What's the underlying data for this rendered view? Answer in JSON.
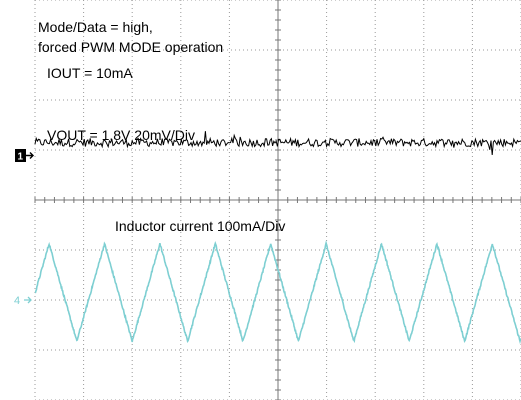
{
  "chart_data": {
    "type": "line",
    "title": "",
    "grid": true,
    "divisions": {
      "horizontal": 10,
      "vertical": 8
    },
    "annotations": [
      "Mode/Data = high,",
      "forced PWM MODE operation",
      "IOUT = 10mA",
      "VOUT = 1.8V 20mV/Div",
      "Inductor current 100mA/Div"
    ],
    "series": [
      {
        "name": "VOUT = 1.8V 20mV/Div",
        "channel_marker": "1",
        "color": "#000000",
        "shape": "noise",
        "offset_div": 5.15,
        "amplitude_div": 0.15
      },
      {
        "name": "Inductor current 100mA/Div",
        "channel_marker": "4",
        "color": "#7ecfd2",
        "shape": "triangle",
        "offset_div": 2.15,
        "amplitude_div": 1.95,
        "period_div": 1.14,
        "first_peak_div": 0.29
      }
    ]
  }
}
